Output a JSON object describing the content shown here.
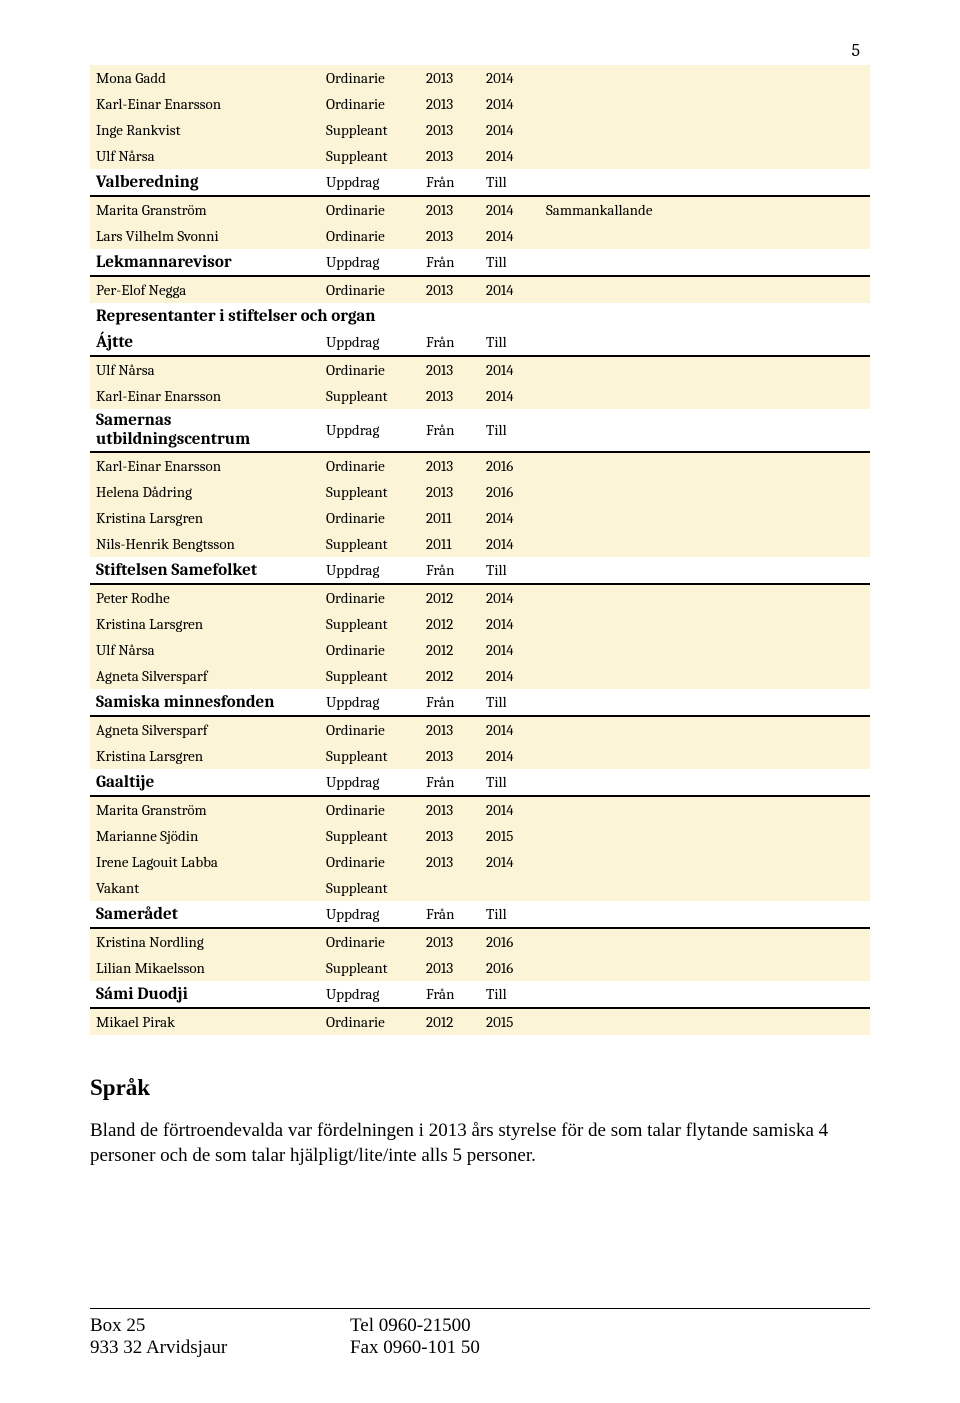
{
  "page_number": "5",
  "colors": {
    "row_bg": "#fcf4d6",
    "section_bg": "#ffffff",
    "border": "#000000",
    "text": "#000000"
  },
  "top_rows": [
    {
      "name": "Mona Gadd",
      "role": "Ordinarie",
      "from": "2013",
      "to": "2014",
      "note": ""
    },
    {
      "name": "Karl-Einar Enarsson",
      "role": "Ordinarie",
      "from": "2013",
      "to": "2014",
      "note": ""
    },
    {
      "name": "Inge Rankvist",
      "role": "Suppleant",
      "from": "2013",
      "to": "2014",
      "note": ""
    },
    {
      "name": "Ulf Nårsa",
      "role": "Suppleant",
      "from": "2013",
      "to": "2014",
      "note": ""
    }
  ],
  "groups": [
    {
      "title": "Valberedning",
      "h_role": "Uppdrag",
      "h_from": "Från",
      "h_to": "Till",
      "rows": [
        {
          "name": "Marita Granström",
          "role": "Ordinarie",
          "from": "2013",
          "to": "2014",
          "note": "Sammankallande"
        },
        {
          "name": "Lars Vilhelm Svonni",
          "role": "Ordinarie",
          "from": "2013",
          "to": "2014",
          "note": ""
        }
      ]
    },
    {
      "title": "Lekmannarevisor",
      "h_role": "Uppdrag",
      "h_from": "Från",
      "h_to": "Till",
      "rows": [
        {
          "name": "Per-Elof Negga",
          "role": "Ordinarie",
          "from": "2013",
          "to": "2014",
          "note": ""
        }
      ]
    }
  ],
  "stiftelser_heading": "Representanter i stiftelser och organ",
  "stiftelser_groups": [
    {
      "title": "Ájtte",
      "h_role": "Uppdrag",
      "h_from": "Från",
      "h_to": "Till",
      "rows": [
        {
          "name": "Ulf Nårsa",
          "role": "Ordinarie",
          "from": "2013",
          "to": "2014",
          "note": ""
        },
        {
          "name": "Karl-Einar Enarsson",
          "role": "Suppleant",
          "from": "2013",
          "to": "2014",
          "note": ""
        }
      ]
    },
    {
      "title": "Samernas utbildningscentrum",
      "h_role": "Uppdrag",
      "h_from": "Från",
      "h_to": "Till",
      "rows": [
        {
          "name": "Karl-Einar Enarsson",
          "role": "Ordinarie",
          "from": "2013",
          "to": "2016",
          "note": ""
        },
        {
          "name": "Helena Dådring",
          "role": "Suppleant",
          "from": "2013",
          "to": "2016",
          "note": ""
        },
        {
          "name": "Kristina Larsgren",
          "role": "Ordinarie",
          "from": "2011",
          "to": "2014",
          "note": ""
        },
        {
          "name": "Nils-Henrik Bengtsson",
          "role": "Suppleant",
          "from": "2011",
          "to": "2014",
          "note": ""
        }
      ]
    },
    {
      "title": "Stiftelsen Samefolket",
      "h_role": "Uppdrag",
      "h_from": "Från",
      "h_to": "Till",
      "rows": [
        {
          "name": "Peter Rodhe",
          "role": "Ordinarie",
          "from": "2012",
          "to": "2014",
          "note": ""
        },
        {
          "name": "Kristina Larsgren",
          "role": "Suppleant",
          "from": "2012",
          "to": "2014",
          "note": ""
        },
        {
          "name": "Ulf Nårsa",
          "role": "Ordinarie",
          "from": "2012",
          "to": "2014",
          "note": ""
        },
        {
          "name": "Agneta Silversparf",
          "role": "Suppleant",
          "from": "2012",
          "to": "2014",
          "note": ""
        }
      ]
    },
    {
      "title": "Samiska minnesfonden",
      "h_role": "Uppdrag",
      "h_from": "Från",
      "h_to": "Till",
      "rows": [
        {
          "name": "Agneta Silversparf",
          "role": "Ordinarie",
          "from": "2013",
          "to": "2014",
          "note": ""
        },
        {
          "name": "Kristina Larsgren",
          "role": "Suppleant",
          "from": "2013",
          "to": "2014",
          "note": ""
        }
      ]
    },
    {
      "title": "Gaaltije",
      "h_role": "Uppdrag",
      "h_from": "Från",
      "h_to": "Till",
      "rows": [
        {
          "name": "Marita Granström",
          "role": "Ordinarie",
          "from": "2013",
          "to": "2014",
          "note": ""
        },
        {
          "name": "Marianne Sjödin",
          "role": "Suppleant",
          "from": "2013",
          "to": "2015",
          "note": ""
        },
        {
          "name": "Irene Lagouit Labba",
          "role": "Ordinarie",
          "from": "2013",
          "to": "2014",
          "note": ""
        },
        {
          "name": "Vakant",
          "role": "Suppleant",
          "from": "",
          "to": "",
          "note": ""
        }
      ]
    },
    {
      "title": "Samerådet",
      "h_role": "Uppdrag",
      "h_from": "Från",
      "h_to": "Till",
      "rows": [
        {
          "name": "Kristina Nordling",
          "role": "Ordinarie",
          "from": "2013",
          "to": "2016",
          "note": ""
        },
        {
          "name": "Lilian Mikaelsson",
          "role": "Suppleant",
          "from": "2013",
          "to": "2016",
          "note": ""
        }
      ]
    },
    {
      "title": "Sámi Duodji",
      "h_role": "Uppdrag",
      "h_from": "Från",
      "h_to": "Till",
      "rows": [
        {
          "name": "Mikael Pirak",
          "role": "Ordinarie",
          "from": "2012",
          "to": "2015",
          "note": ""
        }
      ]
    }
  ],
  "sprak_heading": "Språk",
  "sprak_body": "Bland de förtroendevalda var fördelningen i 2013 års styrelse för de som talar flytande samiska 4 personer och de som talar hjälpligt/lite/inte alls 5 personer.",
  "footer": {
    "left1": "Box 25",
    "left2": "933 32 Arvidsjaur",
    "mid1": "Tel 0960-21500",
    "mid2": "Fax 0960-101 50"
  }
}
